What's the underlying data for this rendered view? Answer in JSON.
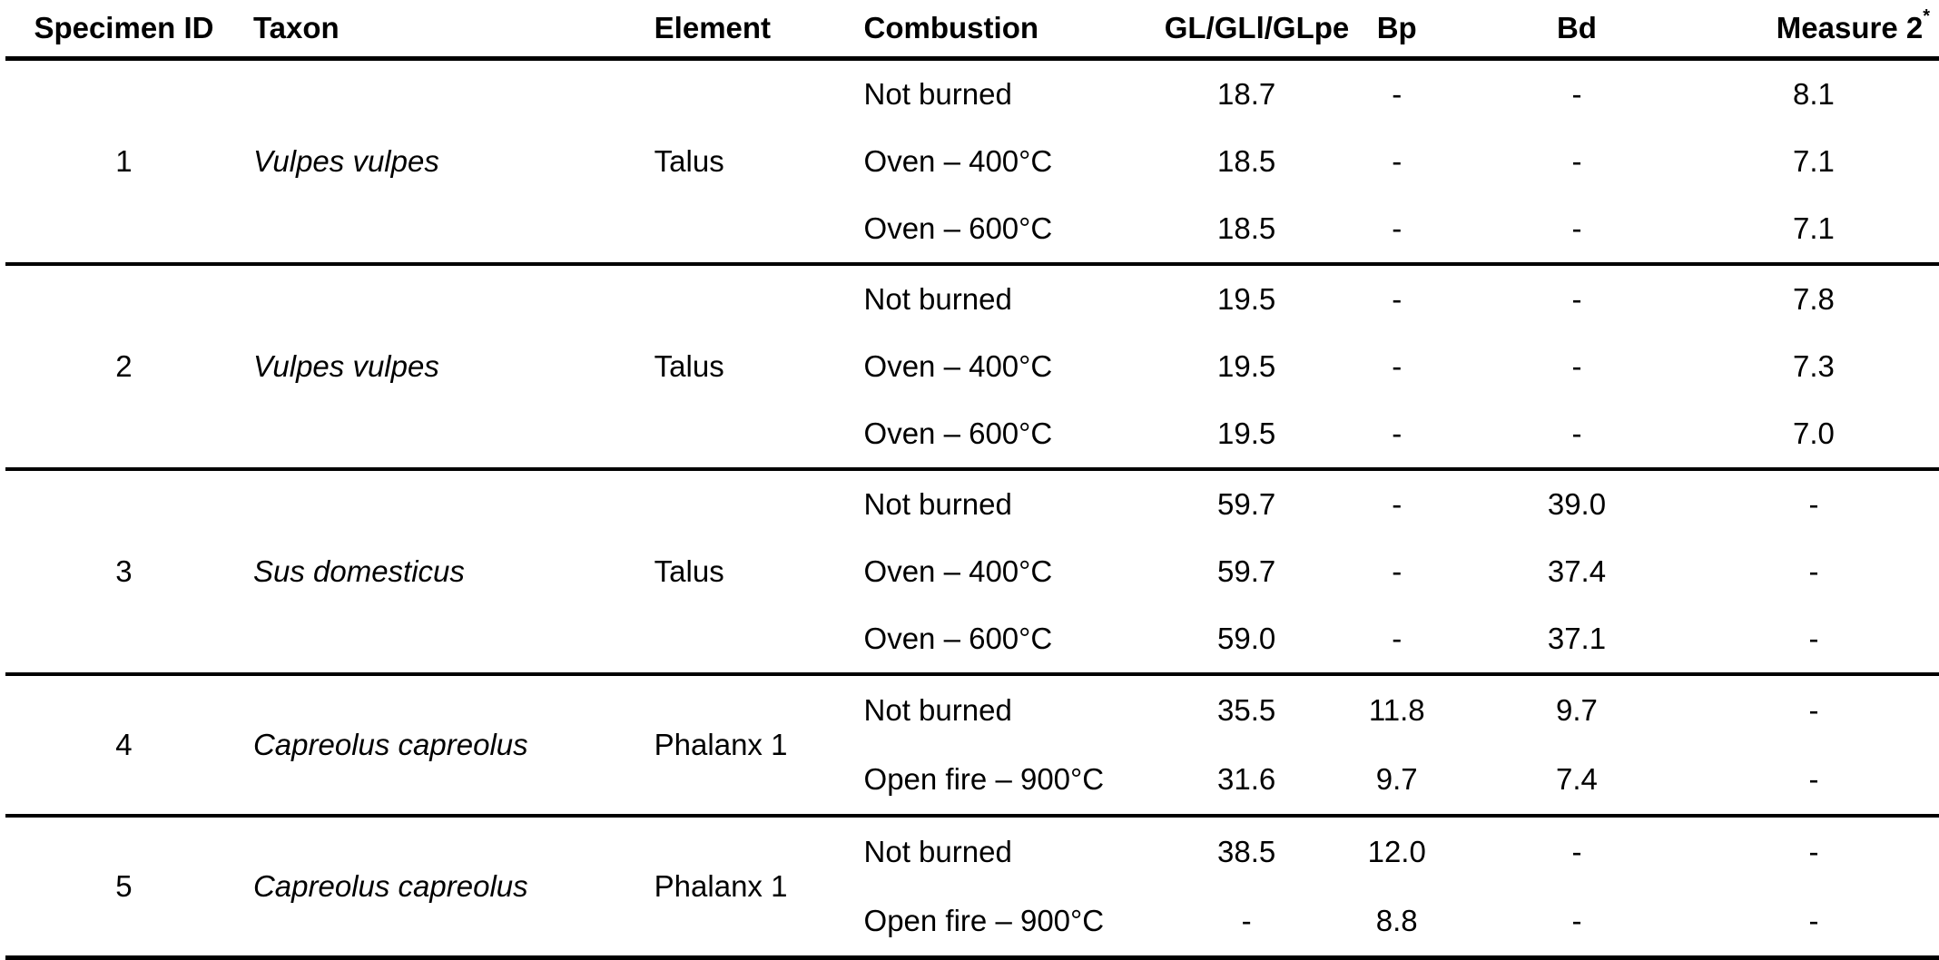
{
  "table": {
    "headers": {
      "specimen_id": "Specimen ID",
      "taxon": "Taxon",
      "element": "Element",
      "combustion": "Combustion",
      "gl": "GL/GLl/GLpe",
      "bp": "Bp",
      "bd": "Bd",
      "measure2": "Measure 2",
      "measure2_note": "*"
    },
    "groups": [
      {
        "id": "1",
        "taxon": "Vulpes vulpes",
        "element": "Talus",
        "rows": [
          {
            "combustion": "Not burned",
            "gl": "18.7",
            "bp": "-",
            "bd": "-",
            "m2": "8.1"
          },
          {
            "combustion": "Oven – 400°C",
            "gl": "18.5",
            "bp": "-",
            "bd": "-",
            "m2": "7.1"
          },
          {
            "combustion": "Oven – 600°C",
            "gl": "18.5",
            "bp": "-",
            "bd": "-",
            "m2": "7.1"
          }
        ]
      },
      {
        "id": "2",
        "taxon": "Vulpes vulpes",
        "element": "Talus",
        "rows": [
          {
            "combustion": "Not burned",
            "gl": "19.5",
            "bp": "-",
            "bd": "-",
            "m2": "7.8"
          },
          {
            "combustion": "Oven – 400°C",
            "gl": "19.5",
            "bp": "-",
            "bd": "-",
            "m2": "7.3"
          },
          {
            "combustion": "Oven – 600°C",
            "gl": "19.5",
            "bp": "-",
            "bd": "-",
            "m2": "7.0"
          }
        ]
      },
      {
        "id": "3",
        "taxon": "Sus domesticus",
        "element": "Talus",
        "rows": [
          {
            "combustion": "Not burned",
            "gl": "59.7",
            "bp": "-",
            "bd": "39.0",
            "m2": "-"
          },
          {
            "combustion": "Oven – 400°C",
            "gl": "59.7",
            "bp": "-",
            "bd": "37.4",
            "m2": "-"
          },
          {
            "combustion": "Oven – 600°C",
            "gl": "59.0",
            "bp": "-",
            "bd": "37.1",
            "m2": "-"
          }
        ]
      },
      {
        "id": "4",
        "taxon": "Capreolus capreolus",
        "element": "Phalanx 1",
        "rows": [
          {
            "combustion": "Not burned",
            "gl": "35.5",
            "bp": "11.8",
            "bd": "9.7",
            "m2": "-"
          },
          {
            "combustion": "Open fire – 900°C",
            "gl": "31.6",
            "bp": "9.7",
            "bd": "7.4",
            "m2": "-"
          }
        ]
      },
      {
        "id": "5",
        "taxon": "Capreolus capreolus",
        "element": "Phalanx 1",
        "rows": [
          {
            "combustion": "Not burned",
            "gl": "38.5",
            "bp": "12.0",
            "bd": "-",
            "m2": "-"
          },
          {
            "combustion": "Open fire – 900°C",
            "gl": "-",
            "bp": "8.8",
            "bd": "-",
            "m2": "-"
          }
        ]
      }
    ]
  }
}
